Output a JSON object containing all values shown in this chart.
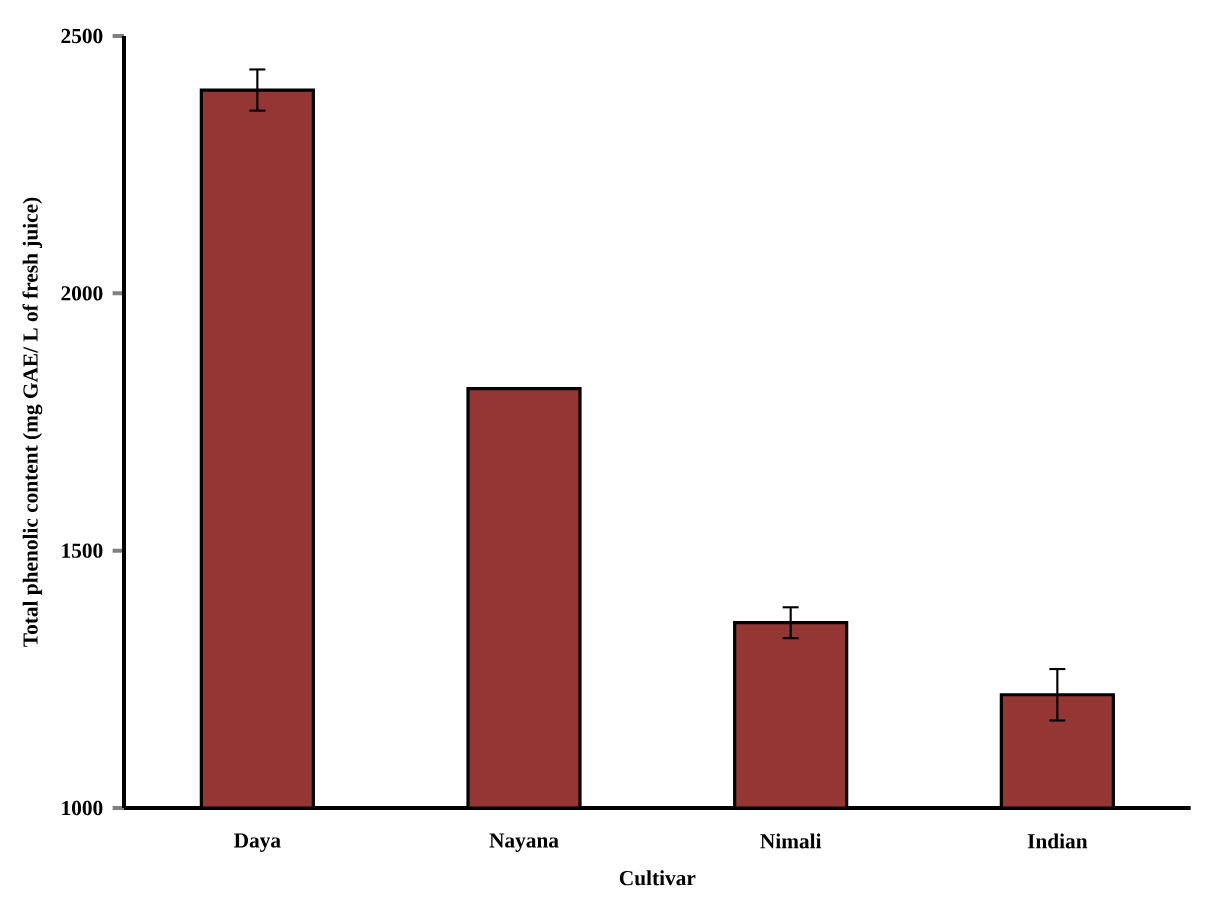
{
  "chart_data": {
    "type": "bar",
    "categories": [
      "Daya",
      "Nayana",
      "Nimali",
      "Indian"
    ],
    "values": [
      2395,
      1815,
      1360,
      1220
    ],
    "errors": [
      40,
      null,
      30,
      50
    ],
    "color": "#943634",
    "ylim": [
      1000,
      2500
    ],
    "yticks": [
      1000,
      1500,
      2000,
      2500
    ],
    "xlabel": "Cultivar",
    "ylabel": "Total phenolic content (mg GAE/ L of fresh juice)"
  }
}
